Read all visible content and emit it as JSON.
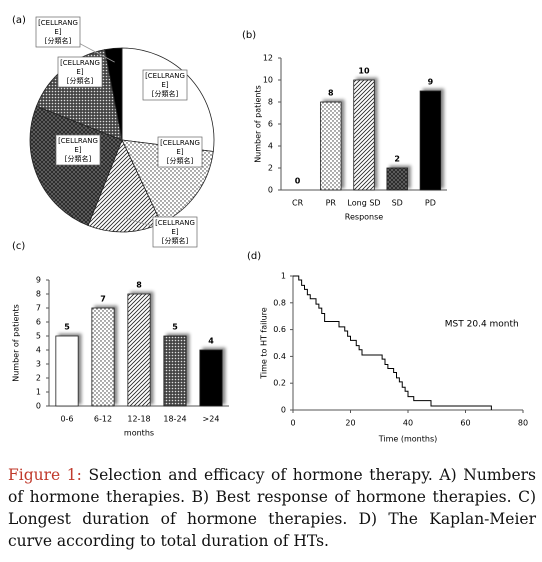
{
  "chart_data": [
    {
      "type": "pie",
      "panel": "(a)",
      "values": [
        27,
        16,
        13,
        25,
        16,
        3
      ],
      "labels": [
        [
          "[CELLRANG",
          "E]",
          "[分類名]"
        ],
        [
          "[CELLRANG",
          "E]",
          "[分類名]"
        ],
        [
          "[CELLRANG",
          "E]",
          "[分類名]"
        ],
        [
          "[CELLRANG",
          "E]",
          "[分類名]"
        ],
        [
          "[CELLRANG",
          "E]",
          "[分類名]"
        ],
        [
          "[CELLRANG",
          "E]",
          "[分類名]"
        ]
      ],
      "patterns": [
        "white",
        "dots",
        "diag",
        "cross",
        "darkdots",
        "black"
      ]
    },
    {
      "type": "bar",
      "panel": "(b)",
      "categories": [
        "CR",
        "PR",
        "Long SD",
        "SD",
        "PD"
      ],
      "values": [
        0,
        8,
        10,
        2,
        9
      ],
      "patterns": [
        "white",
        "dots",
        "diag",
        "cross",
        "black"
      ],
      "ylim": [
        0,
        12
      ],
      "yticks": [
        0,
        2,
        4,
        6,
        8,
        10,
        12
      ],
      "ylabel": "Number of patients",
      "xlabel": "Response"
    },
    {
      "type": "bar",
      "panel": "(c)",
      "categories": [
        "0-6",
        "6-12",
        "12-18",
        "18-24",
        ">24"
      ],
      "values": [
        5,
        7,
        8,
        5,
        4
      ],
      "patterns": [
        "white",
        "dots",
        "diag",
        "darkdots",
        "black"
      ],
      "ylim": [
        0,
        9
      ],
      "yticks": [
        0,
        1,
        2,
        3,
        4,
        5,
        6,
        7,
        8,
        9
      ],
      "ylabel": "Number of patients",
      "xlabel": "months"
    },
    {
      "type": "line",
      "panel": "(d)",
      "x": [
        0,
        2,
        2,
        3,
        3,
        4,
        4,
        5,
        5,
        6,
        6,
        8,
        8,
        9,
        9,
        10,
        10,
        11,
        11,
        16,
        16,
        18,
        18,
        19,
        19,
        20,
        20,
        22,
        22,
        23,
        23,
        24,
        24,
        31,
        31,
        32,
        32,
        33,
        33,
        35,
        35,
        36,
        36,
        37,
        37,
        38,
        38,
        39,
        39,
        40,
        40,
        42,
        42,
        48,
        48,
        69,
        69
      ],
      "values": [
        1,
        1,
        0.97,
        0.97,
        0.93,
        0.93,
        0.9,
        0.9,
        0.86,
        0.86,
        0.83,
        0.83,
        0.79,
        0.79,
        0.76,
        0.76,
        0.72,
        0.72,
        0.66,
        0.66,
        0.62,
        0.62,
        0.59,
        0.59,
        0.55,
        0.55,
        0.52,
        0.52,
        0.48,
        0.48,
        0.45,
        0.45,
        0.41,
        0.41,
        0.38,
        0.38,
        0.34,
        0.34,
        0.31,
        0.31,
        0.28,
        0.28,
        0.24,
        0.24,
        0.21,
        0.21,
        0.17,
        0.17,
        0.14,
        0.14,
        0.1,
        0.1,
        0.07,
        0.07,
        0.03,
        0.03,
        0
      ],
      "color": "#000000",
      "xlim": [
        0,
        80
      ],
      "xticks": [
        0,
        20,
        40,
        60,
        80
      ],
      "ylim": [
        0,
        1
      ],
      "yticks": [
        0,
        0.2,
        0.4,
        0.6,
        0.8,
        1
      ],
      "ylabel": "Time to HT failure",
      "xlabel": "Time (months)",
      "annotation": "MST 20.4 month"
    }
  ],
  "caption": {
    "label": "Figure 1:",
    "text": "Selection and efficacy of hormone therapy. A) Numbers of hormone therapies. B) Best response of hormone therapies. C) Longest duration of hormone therapies. D) The Kaplan-Meier curve according to total duration of HTs."
  }
}
